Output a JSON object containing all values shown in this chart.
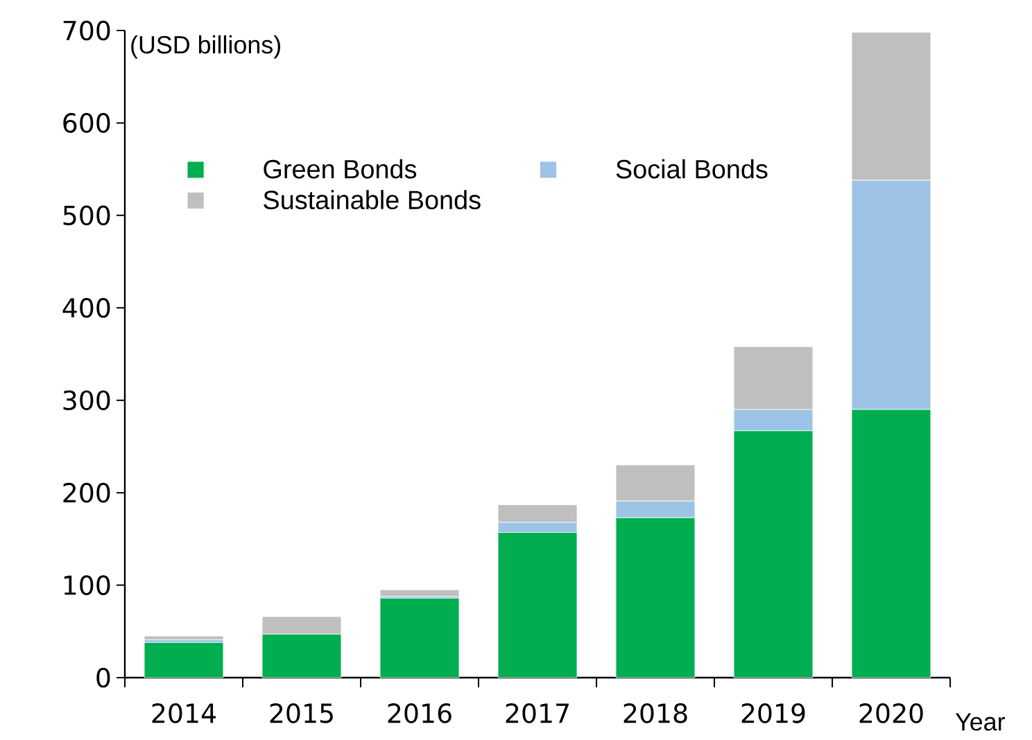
{
  "chart_data": {
    "type": "bar",
    "stacked": true,
    "ylabel": "(USD billions)",
    "xlabel": "Year",
    "categories": [
      "2014",
      "2015",
      "2016",
      "2017",
      "2018",
      "2019",
      "2020"
    ],
    "series": [
      {
        "name": "Green Bonds",
        "color": "#00ad4f",
        "values": [
          38,
          47,
          86,
          157,
          173,
          267,
          290
        ]
      },
      {
        "name": "Social Bonds",
        "color": "#9dc3e6",
        "values": [
          3,
          0,
          2,
          11,
          18,
          23,
          248
        ]
      },
      {
        "name": "Sustainable Bonds",
        "color": "#bfbfbf",
        "values": [
          4,
          19,
          7,
          19,
          39,
          68,
          160
        ]
      }
    ],
    "ylim": [
      0,
      700
    ],
    "yticks": [
      0,
      100,
      200,
      300,
      400,
      500,
      600,
      700
    ],
    "legend": "top left",
    "grid": false
  }
}
